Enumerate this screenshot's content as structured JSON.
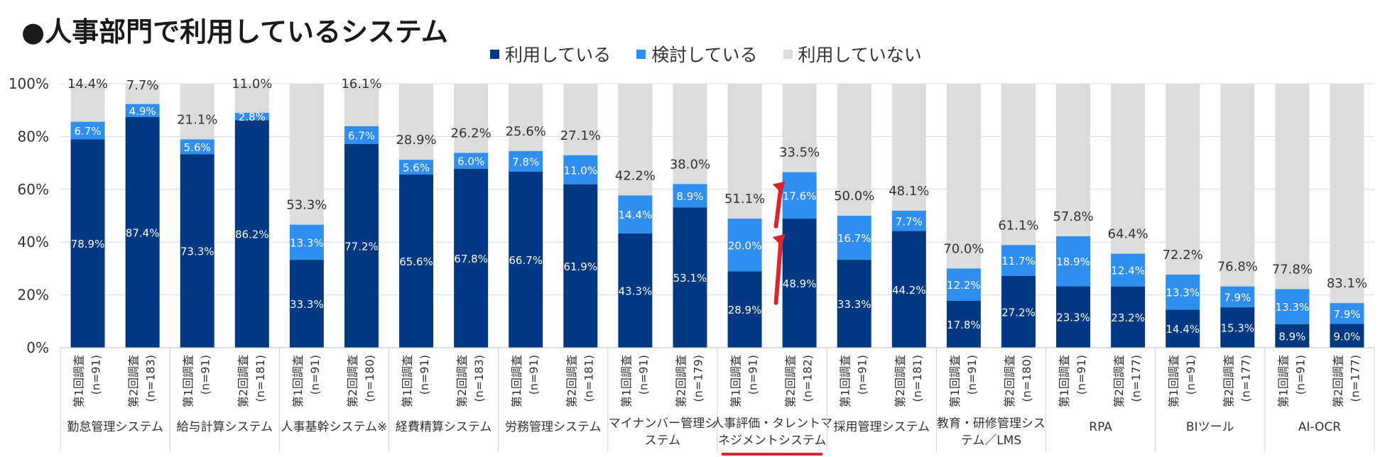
{
  "title": "●人事部門で利用しているシステム",
  "colors": {
    "using": "#003883",
    "considering": "#2f8ff0",
    "not_using": "#dcdcdc",
    "highlight": "#d9262e"
  },
  "legend": [
    {
      "key": "using",
      "label": "利用している"
    },
    {
      "key": "considering",
      "label": "検討している"
    },
    {
      "key": "not_using",
      "label": "利用していない"
    }
  ],
  "chart_data": {
    "type": "bar",
    "stacked": true,
    "ylim": [
      0,
      100
    ],
    "yticks": [
      "0%",
      "20%",
      "40%",
      "60%",
      "80%",
      "100%"
    ],
    "groups": [
      {
        "label": "勤怠管理システム",
        "bars": [
          {
            "survey": "第1回調査",
            "n": "(n=91)",
            "using": 78.9,
            "considering": 6.7,
            "not_using": 14.4
          },
          {
            "survey": "第2回調査",
            "n": "(n=183)",
            "using": 87.4,
            "considering": 4.9,
            "not_using": 7.7
          }
        ]
      },
      {
        "label": "給与計算システム",
        "bars": [
          {
            "survey": "第1回調査",
            "n": "(n=91)",
            "using": 73.3,
            "considering": 5.6,
            "not_using": 21.1
          },
          {
            "survey": "第2回調査",
            "n": "(n=181)",
            "using": 86.2,
            "considering": 2.8,
            "not_using": 11.0
          }
        ]
      },
      {
        "label": "人事基幹システム※",
        "bars": [
          {
            "survey": "第1回調査",
            "n": "(n=91)",
            "using": 33.3,
            "considering": 13.3,
            "not_using": 53.3
          },
          {
            "survey": "第2回調査",
            "n": "(n=180)",
            "using": 77.2,
            "considering": 6.7,
            "not_using": 16.1
          }
        ]
      },
      {
        "label": "経費精算システム",
        "bars": [
          {
            "survey": "第1回調査",
            "n": "(n=91)",
            "using": 65.6,
            "considering": 5.6,
            "not_using": 28.9
          },
          {
            "survey": "第2回調査",
            "n": "(n=183)",
            "using": 67.8,
            "considering": 6.0,
            "not_using": 26.2
          }
        ]
      },
      {
        "label": "労務管理システム",
        "bars": [
          {
            "survey": "第1回調査",
            "n": "(n=91)",
            "using": 66.7,
            "considering": 7.8,
            "not_using": 25.6
          },
          {
            "survey": "第2回調査",
            "n": "(n=181)",
            "using": 61.9,
            "considering": 11.0,
            "not_using": 27.1
          }
        ]
      },
      {
        "label": "マイナンバー管理シ\nステム",
        "bars": [
          {
            "survey": "第1回調査",
            "n": "(n=91)",
            "using": 43.3,
            "considering": 14.4,
            "not_using": 42.2
          },
          {
            "survey": "第2回調査",
            "n": "(n=179)",
            "using": 53.1,
            "considering": 8.9,
            "not_using": 38.0
          }
        ]
      },
      {
        "label": "人事評価・タレントマ\nネジメントシステム",
        "highlight": true,
        "bars": [
          {
            "survey": "第1回調査",
            "n": "(n=91)",
            "using": 28.9,
            "considering": 20.0,
            "not_using": 51.1
          },
          {
            "survey": "第2回調査",
            "n": "(n=182)",
            "using": 48.9,
            "considering": 17.6,
            "not_using": 33.5
          }
        ]
      },
      {
        "label": "採用管理システム",
        "bars": [
          {
            "survey": "第1回調査",
            "n": "(n=91)",
            "using": 33.3,
            "considering": 16.7,
            "not_using": 50.0
          },
          {
            "survey": "第2回調査",
            "n": "(n=181)",
            "using": 44.2,
            "considering": 7.7,
            "not_using": 48.1
          }
        ]
      },
      {
        "label": "教育・研修管理シス\nテム／LMS",
        "bars": [
          {
            "survey": "第1回調査",
            "n": "(n=91)",
            "using": 17.8,
            "considering": 12.2,
            "not_using": 70.0
          },
          {
            "survey": "第2回調査",
            "n": "(n=180)",
            "using": 27.2,
            "considering": 11.7,
            "not_using": 61.1
          }
        ]
      },
      {
        "label": "RPA",
        "bars": [
          {
            "survey": "第1回調査",
            "n": "(n=91)",
            "using": 23.3,
            "considering": 18.9,
            "not_using": 57.8
          },
          {
            "survey": "第2回調査",
            "n": "(n=177)",
            "using": 23.2,
            "considering": 12.4,
            "not_using": 64.4
          }
        ]
      },
      {
        "label": "BIツール",
        "bars": [
          {
            "survey": "第1回調査",
            "n": "(n=91)",
            "using": 14.4,
            "considering": 13.3,
            "not_using": 72.2
          },
          {
            "survey": "第2回調査",
            "n": "(n=177)",
            "using": 15.3,
            "considering": 7.9,
            "not_using": 76.8
          }
        ]
      },
      {
        "label": "AI-OCR",
        "bars": [
          {
            "survey": "第1回調査",
            "n": "(n=91)",
            "using": 8.9,
            "considering": 13.3,
            "not_using": 77.8
          },
          {
            "survey": "第2回調査",
            "n": "(n=177)",
            "using": 9.0,
            "considering": 7.9,
            "not_using": 83.1
          }
        ]
      }
    ]
  }
}
